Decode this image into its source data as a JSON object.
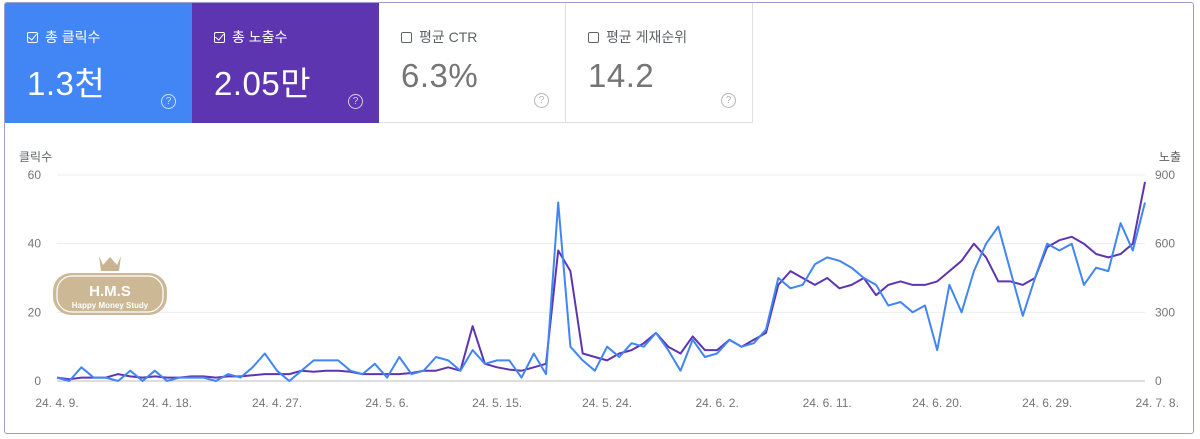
{
  "cards": [
    {
      "label": "총 클릭수",
      "value": "1.3천",
      "checked": true
    },
    {
      "label": "총 노출수",
      "value": "2.05만",
      "checked": true
    },
    {
      "label": "평균 CTR",
      "value": "6.3%",
      "checked": false
    },
    {
      "label": "평균 게재순위",
      "value": "14.2",
      "checked": false
    }
  ],
  "watermark": {
    "title": "H.M.S",
    "subtitle": "Happy Money Study"
  },
  "colors": {
    "clicks": "#4285f4",
    "impressions": "#5e35b1"
  },
  "chart_data": {
    "type": "line",
    "left_axis_title": "클릭수",
    "right_axis_title": "노출",
    "left_ticks": [
      "60",
      "40",
      "20",
      "0"
    ],
    "right_ticks": [
      "900",
      "600",
      "300",
      "0"
    ],
    "ylim_left": [
      0,
      60
    ],
    "ylim_right": [
      0,
      900
    ],
    "grid": true,
    "x_ticks": [
      "24. 4. 9.",
      "24. 4. 18.",
      "24. 4. 27.",
      "24. 5. 6.",
      "24. 5. 15.",
      "24. 5. 24.",
      "24. 6. 2.",
      "24. 6. 11.",
      "24. 6. 20.",
      "24. 6. 29.",
      "24. 7. 8."
    ],
    "x_start": "2024-04-09",
    "x_end": "2024-07-08",
    "series": [
      {
        "axis": "left",
        "color": "#4285f4",
        "values": [
          1,
          0,
          4,
          1,
          1,
          0,
          3,
          0,
          3,
          0,
          1,
          1,
          1,
          0,
          2,
          1,
          4,
          8,
          3,
          0,
          3,
          6,
          6,
          6,
          3,
          2,
          5,
          1,
          7,
          2,
          3,
          7,
          6,
          3,
          9,
          5,
          6,
          6,
          1,
          8,
          2,
          52,
          10,
          6,
          3,
          10,
          7,
          11,
          10,
          14,
          9,
          3,
          12,
          7,
          8,
          12,
          10,
          11,
          15,
          30,
          27,
          28,
          34,
          36,
          35,
          33,
          30,
          28,
          22,
          23,
          20,
          22,
          9,
          28,
          20,
          32,
          40,
          45,
          32,
          19,
          30,
          40,
          38,
          40,
          28,
          33,
          32,
          46,
          38,
          52
        ]
      },
      {
        "axis": "right",
        "color": "#5e35b1",
        "values": [
          15,
          8,
          15,
          15,
          15,
          30,
          20,
          15,
          20,
          15,
          15,
          20,
          20,
          15,
          20,
          20,
          25,
          30,
          30,
          30,
          45,
          40,
          45,
          45,
          40,
          30,
          30,
          30,
          30,
          35,
          45,
          45,
          60,
          45,
          240,
          75,
          60,
          50,
          45,
          60,
          75,
          570,
          480,
          120,
          105,
          90,
          120,
          135,
          165,
          210,
          150,
          120,
          195,
          135,
          135,
          180,
          150,
          180,
          210,
          420,
          480,
          450,
          420,
          450,
          405,
          420,
          450,
          375,
          420,
          435,
          420,
          420,
          435,
          480,
          525,
          600,
          540,
          435,
          435,
          420,
          450,
          585,
          615,
          630,
          600,
          555,
          540,
          555,
          600,
          870
        ]
      }
    ]
  }
}
